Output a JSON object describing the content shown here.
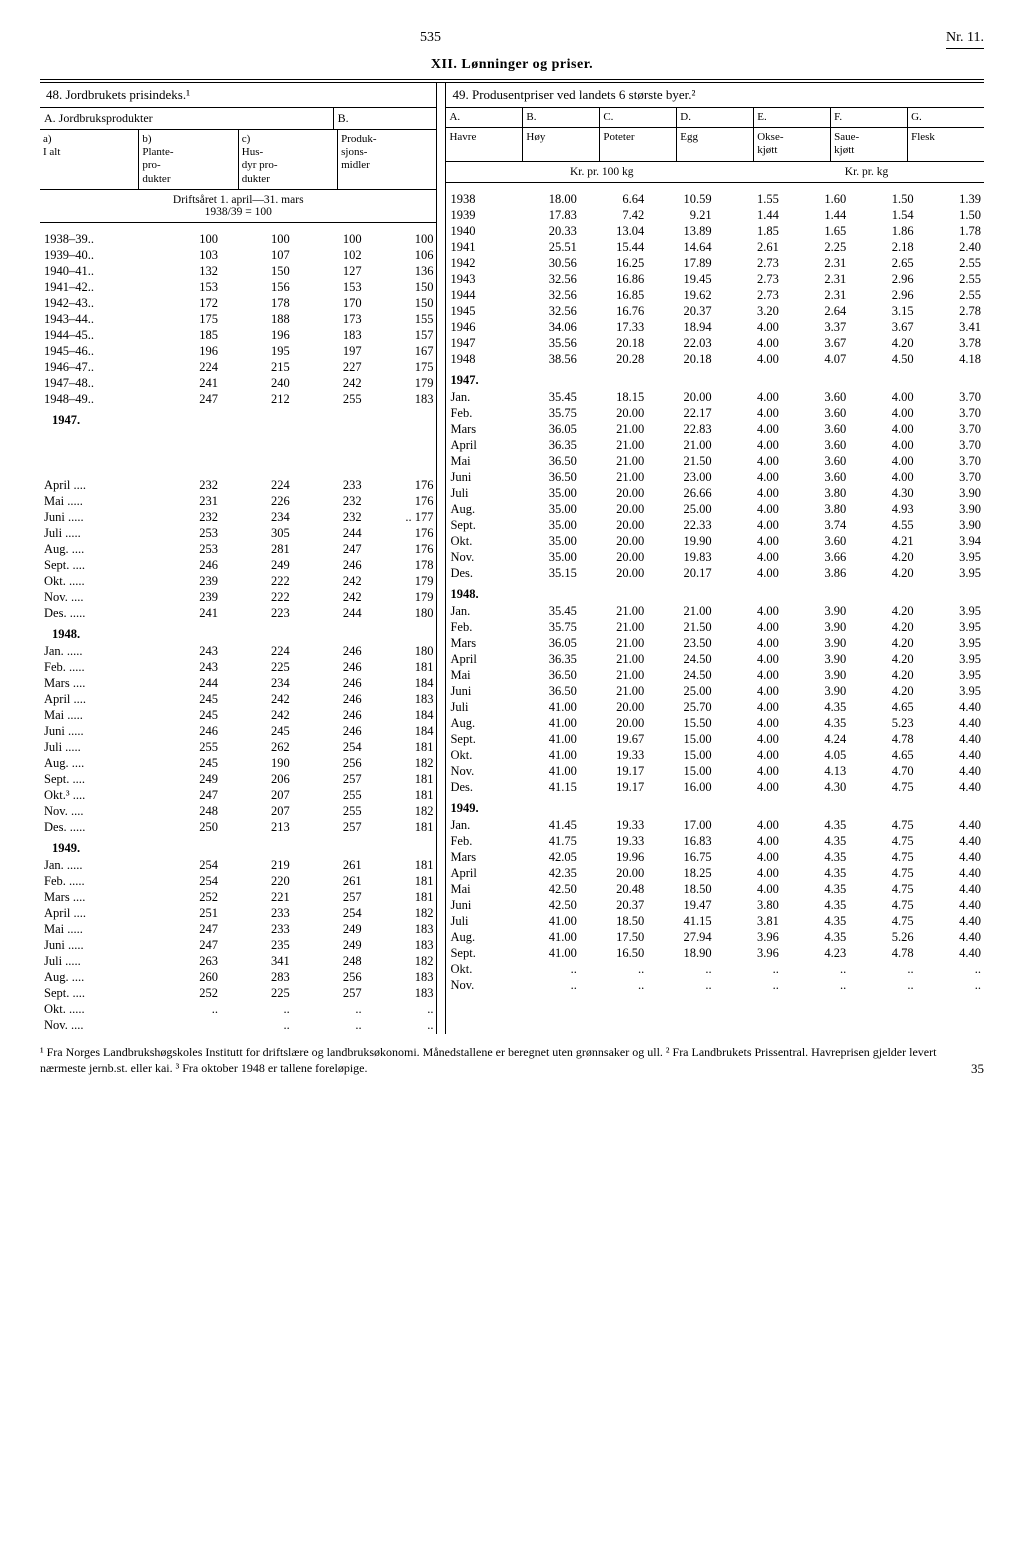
{
  "page_number": "535",
  "issue": "Nr. 11.",
  "section_title": "XII. Lønninger og priser.",
  "table48": {
    "title": "48. Jordbrukets prisindeks.¹",
    "sub_a": "A. Jordbruksprodukter",
    "sub_b": "B.",
    "cols": [
      "a)\nI alt",
      "b)\nPlante-\npro-\ndukter",
      "c)\nHus-\ndyr pro-\ndukter",
      "Produk-\nsjons-\nmidler"
    ],
    "drift": "Driftsåret 1. april—31. mars\n1938/39 = 100"
  },
  "table49": {
    "title": "49. Produsentpriser ved landets 6 største byer.²",
    "letters": [
      "A.",
      "B.",
      "C.",
      "D.",
      "E.",
      "F.",
      "G."
    ],
    "cols": [
      "Havre",
      "Høy",
      "Poteter",
      "Egg",
      "Okse-\nkjøtt",
      "Saue-\nkjøtt",
      "Flesk"
    ],
    "unit_left": "Kr. pr. 100 kg",
    "unit_right": "Kr. pr. kg"
  },
  "rows_l": [
    [
      "1938–39..",
      "100",
      "100",
      "100",
      "100"
    ],
    [
      "1939–40..",
      "103",
      "107",
      "102",
      "106"
    ],
    [
      "1940–41..",
      "132",
      "150",
      "127",
      "136"
    ],
    [
      "1941–42..",
      "153",
      "156",
      "153",
      "150"
    ],
    [
      "1942–43..",
      "172",
      "178",
      "170",
      "150"
    ],
    [
      "1943–44..",
      "175",
      "188",
      "173",
      "155"
    ],
    [
      "1944–45..",
      "185",
      "196",
      "183",
      "157"
    ],
    [
      "1945–46..",
      "196",
      "195",
      "197",
      "167"
    ],
    [
      "1946–47..",
      "224",
      "215",
      "227",
      "175"
    ],
    [
      "1947–48..",
      "241",
      "240",
      "242",
      "179"
    ],
    [
      "1948–49..",
      "247",
      "212",
      "255",
      "183"
    ]
  ],
  "rows_r": [
    [
      "1938",
      "18.00",
      "6.64",
      "10.59",
      "1.55",
      "1.60",
      "1.50",
      "1.39"
    ],
    [
      "1939",
      "17.83",
      "7.42",
      "9.21",
      "1.44",
      "1.44",
      "1.54",
      "1.50"
    ],
    [
      "1940",
      "20.33",
      "13.04",
      "13.89",
      "1.85",
      "1.65",
      "1.86",
      "1.78"
    ],
    [
      "1941",
      "25.51",
      "15.44",
      "14.64",
      "2.61",
      "2.25",
      "2.18",
      "2.40"
    ],
    [
      "1942",
      "30.56",
      "16.25",
      "17.89",
      "2.73",
      "2.31",
      "2.65",
      "2.55"
    ],
    [
      "1943",
      "32.56",
      "16.86",
      "19.45",
      "2.73",
      "2.31",
      "2.96",
      "2.55"
    ],
    [
      "1944",
      "32.56",
      "16.85",
      "19.62",
      "2.73",
      "2.31",
      "2.96",
      "2.55"
    ],
    [
      "1945",
      "32.56",
      "16.76",
      "20.37",
      "3.20",
      "2.64",
      "3.15",
      "2.78"
    ],
    [
      "1946",
      "34.06",
      "17.33",
      "18.94",
      "4.00",
      "3.37",
      "3.67",
      "3.41"
    ],
    [
      "1947",
      "35.56",
      "20.18",
      "22.03",
      "4.00",
      "3.67",
      "4.20",
      "3.78"
    ],
    [
      "1948",
      "38.56",
      "20.28",
      "20.18",
      "4.00",
      "4.07",
      "4.50",
      "4.18"
    ]
  ],
  "year_1947": "1947.",
  "months_l_1947": [
    [
      "April ....",
      "232",
      "224",
      "233",
      "176"
    ],
    [
      "Mai .....",
      "231",
      "226",
      "232",
      "176"
    ],
    [
      "Juni .....",
      "232",
      "234",
      "232",
      ".. 177"
    ],
    [
      "Juli .....",
      "253",
      "305",
      "244",
      "176"
    ],
    [
      "Aug. ....",
      "253",
      "281",
      "247",
      "176"
    ],
    [
      "Sept. ....",
      "246",
      "249",
      "246",
      "178"
    ],
    [
      "Okt. .....",
      "239",
      "222",
      "242",
      "179"
    ],
    [
      "Nov. ....",
      "239",
      "222",
      "242",
      "179"
    ],
    [
      "Des. .....",
      "241",
      "223",
      "244",
      "180"
    ]
  ],
  "months_r_1947": [
    [
      "Jan.",
      "35.45",
      "18.15",
      "20.00",
      "4.00",
      "3.60",
      "4.00",
      "3.70"
    ],
    [
      "Feb.",
      "35.75",
      "20.00",
      "22.17",
      "4.00",
      "3.60",
      "4.00",
      "3.70"
    ],
    [
      "Mars",
      "36.05",
      "21.00",
      "22.83",
      "4.00",
      "3.60",
      "4.00",
      "3.70"
    ],
    [
      "April",
      "36.35",
      "21.00",
      "21.00",
      "4.00",
      "3.60",
      "4.00",
      "3.70"
    ],
    [
      "Mai",
      "36.50",
      "21.00",
      "21.50",
      "4.00",
      "3.60",
      "4.00",
      "3.70"
    ],
    [
      "Juni",
      "36.50",
      "21.00",
      "23.00",
      "4.00",
      "3.60",
      "4.00",
      "3.70"
    ],
    [
      "Juli",
      "35.00",
      "20.00",
      "26.66",
      "4.00",
      "3.80",
      "4.30",
      "3.90"
    ],
    [
      "Aug.",
      "35.00",
      "20.00",
      "25.00",
      "4.00",
      "3.80",
      "4.93",
      "3.90"
    ],
    [
      "Sept.",
      "35.00",
      "20.00",
      "22.33",
      "4.00",
      "3.74",
      "4.55",
      "3.90"
    ],
    [
      "Okt.",
      "35.00",
      "20.00",
      "19.90",
      "4.00",
      "3.60",
      "4.21",
      "3.94"
    ],
    [
      "Nov.",
      "35.00",
      "20.00",
      "19.83",
      "4.00",
      "3.66",
      "4.20",
      "3.95"
    ],
    [
      "Des.",
      "35.15",
      "20.00",
      "20.17",
      "4.00",
      "3.86",
      "4.20",
      "3.95"
    ]
  ],
  "year_1948": "1948.",
  "months_l_1948": [
    [
      "Jan. .....",
      "243",
      "224",
      "246",
      "180"
    ],
    [
      "Feb. .....",
      "243",
      "225",
      "246",
      "181"
    ],
    [
      "Mars ....",
      "244",
      "234",
      "246",
      "184"
    ],
    [
      "April ....",
      "245",
      "242",
      "246",
      "183"
    ],
    [
      "Mai .....",
      "245",
      "242",
      "246",
      "184"
    ],
    [
      "Juni .....",
      "246",
      "245",
      "246",
      "184"
    ],
    [
      "Juli .....",
      "255",
      "262",
      "254",
      "181"
    ],
    [
      "Aug. ....",
      "245",
      "190",
      "256",
      "182"
    ],
    [
      "Sept. ....",
      "249",
      "206",
      "257",
      "181"
    ],
    [
      "Okt.³ ....",
      "247",
      "207",
      "255",
      "181"
    ],
    [
      "Nov. ....",
      "248",
      "207",
      "255",
      "182"
    ],
    [
      "Des. .....",
      "250",
      "213",
      "257",
      "181"
    ]
  ],
  "months_r_1948": [
    [
      "Jan.",
      "35.45",
      "21.00",
      "21.00",
      "4.00",
      "3.90",
      "4.20",
      "3.95"
    ],
    [
      "Feb.",
      "35.75",
      "21.00",
      "21.50",
      "4.00",
      "3.90",
      "4.20",
      "3.95"
    ],
    [
      "Mars",
      "36.05",
      "21.00",
      "23.50",
      "4.00",
      "3.90",
      "4.20",
      "3.95"
    ],
    [
      "April",
      "36.35",
      "21.00",
      "24.50",
      "4.00",
      "3.90",
      "4.20",
      "3.95"
    ],
    [
      "Mai",
      "36.50",
      "21.00",
      "24.50",
      "4.00",
      "3.90",
      "4.20",
      "3.95"
    ],
    [
      "Juni",
      "36.50",
      "21.00",
      "25.00",
      "4.00",
      "3.90",
      "4.20",
      "3.95"
    ],
    [
      "Juli",
      "41.00",
      "20.00",
      "25.70",
      "4.00",
      "4.35",
      "4.65",
      "4.40"
    ],
    [
      "Aug.",
      "41.00",
      "20.00",
      "15.50",
      "4.00",
      "4.35",
      "5.23",
      "4.40"
    ],
    [
      "Sept.",
      "41.00",
      "19.67",
      "15.00",
      "4.00",
      "4.24",
      "4.78",
      "4.40"
    ],
    [
      "Okt.",
      "41.00",
      "19.33",
      "15.00",
      "4.00",
      "4.05",
      "4.65",
      "4.40"
    ],
    [
      "Nov.",
      "41.00",
      "19.17",
      "15.00",
      "4.00",
      "4.13",
      "4.70",
      "4.40"
    ],
    [
      "Des.",
      "41.15",
      "19.17",
      "16.00",
      "4.00",
      "4.30",
      "4.75",
      "4.40"
    ]
  ],
  "year_1949": "1949.",
  "months_l_1949": [
    [
      "Jan. .....",
      "254",
      "219",
      "261",
      "181"
    ],
    [
      "Feb. .....",
      "254",
      "220",
      "261",
      "181"
    ],
    [
      "Mars ....",
      "252",
      "221",
      "257",
      "181"
    ],
    [
      "April ....",
      "251",
      "233",
      "254",
      "182"
    ],
    [
      "Mai .....",
      "247",
      "233",
      "249",
      "183"
    ],
    [
      "Juni .....",
      "247",
      "235",
      "249",
      "183"
    ],
    [
      "Juli .....",
      "263",
      "341",
      "248",
      "182"
    ],
    [
      "Aug. ....",
      "260",
      "283",
      "256",
      "183"
    ],
    [
      "Sept. ....",
      "252",
      "225",
      "257",
      "183"
    ],
    [
      "Okt. .....",
      "..",
      "..",
      "..",
      ".."
    ],
    [
      "Nov. ....",
      "",
      "..",
      "..",
      ".."
    ]
  ],
  "months_r_1949": [
    [
      "Jan.",
      "41.45",
      "19.33",
      "17.00",
      "4.00",
      "4.35",
      "4.75",
      "4.40"
    ],
    [
      "Feb.",
      "41.75",
      "19.33",
      "16.83",
      "4.00",
      "4.35",
      "4.75",
      "4.40"
    ],
    [
      "Mars",
      "42.05",
      "19.96",
      "16.75",
      "4.00",
      "4.35",
      "4.75",
      "4.40"
    ],
    [
      "April",
      "42.35",
      "20.00",
      "18.25",
      "4.00",
      "4.35",
      "4.75",
      "4.40"
    ],
    [
      "Mai",
      "42.50",
      "20.48",
      "18.50",
      "4.00",
      "4.35",
      "4.75",
      "4.40"
    ],
    [
      "Juni",
      "42.50",
      "20.37",
      "19.47",
      "3.80",
      "4.35",
      "4.75",
      "4.40"
    ],
    [
      "Juli",
      "41.00",
      "18.50",
      "41.15",
      "3.81",
      "4.35",
      "4.75",
      "4.40"
    ],
    [
      "Aug.",
      "41.00",
      "17.50",
      "27.94",
      "3.96",
      "4.35",
      "5.26",
      "4.40"
    ],
    [
      "Sept.",
      "41.00",
      "16.50",
      "18.90",
      "3.96",
      "4.23",
      "4.78",
      "4.40"
    ],
    [
      "Okt.",
      "..",
      "..",
      "..",
      "..",
      "..",
      "..",
      ".."
    ],
    [
      "Nov.",
      "..",
      "..",
      "..",
      "..",
      "..",
      "..",
      ".."
    ]
  ],
  "footnote": "¹ Fra Norges Landbrukshøgskoles Institutt for driftslære og landbruksøkonomi. Månedstallene er beregnet uten grønnsaker og ull.  ² Fra Landbrukets Prissentral. Havreprisen gjelder levert nærmeste jernb.st. eller kai.  ³ Fra oktober 1948 er tallene foreløpige.",
  "bottom_page": "35"
}
